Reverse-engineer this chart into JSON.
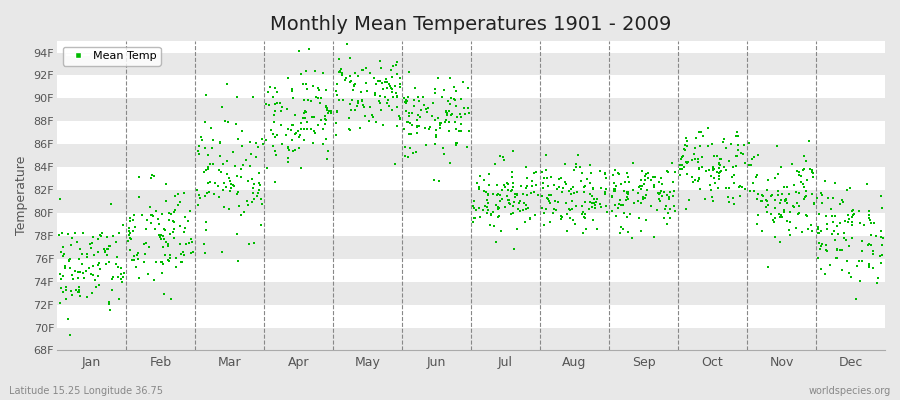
{
  "title": "Monthly Mean Temperatures 1901 - 2009",
  "ylabel": "Temperature",
  "xlabel_lat_lon": "Latitude 15.25 Longitude 36.75",
  "watermark": "worldspecies.org",
  "dot_color": "#00BB00",
  "dot_size": 2.5,
  "bg_color": "#E8E8E8",
  "plot_bg_color": "#FFFFFF",
  "band_color_light": "#FFFFFF",
  "band_color_dark": "#E8E8E8",
  "dashed_line_color": "#888888",
  "ylim": [
    68,
    95
  ],
  "ytick_labels": [
    "68F",
    "70F",
    "72F",
    "74F",
    "76F",
    "78F",
    "80F",
    "82F",
    "84F",
    "86F",
    "88F",
    "90F",
    "92F",
    "94F"
  ],
  "ytick_values": [
    68,
    70,
    72,
    74,
    76,
    78,
    80,
    82,
    84,
    86,
    88,
    90,
    92,
    94
  ],
  "months": [
    "Jan",
    "Feb",
    "Mar",
    "Apr",
    "May",
    "Jun",
    "Jul",
    "Aug",
    "Sep",
    "Oct",
    "Nov",
    "Dec"
  ],
  "month_centers": [
    0.5,
    1.5,
    2.5,
    3.5,
    4.5,
    5.5,
    6.5,
    7.5,
    8.5,
    9.5,
    10.5,
    11.5
  ],
  "month_boundaries": [
    0,
    1,
    2,
    3,
    4,
    5,
    6,
    7,
    8,
    9,
    10,
    11,
    12
  ],
  "xlim": [
    0,
    12
  ],
  "num_years": 109,
  "seed": 42,
  "monthly_mean_temps_F": [
    75.2,
    77.8,
    83.5,
    88.5,
    90.5,
    88.0,
    81.5,
    81.2,
    81.5,
    84.2,
    81.5,
    78.2
  ],
  "monthly_std_temps_F": [
    2.2,
    2.5,
    2.8,
    2.2,
    1.8,
    1.8,
    1.6,
    1.5,
    1.6,
    1.8,
    2.2,
    2.2
  ]
}
